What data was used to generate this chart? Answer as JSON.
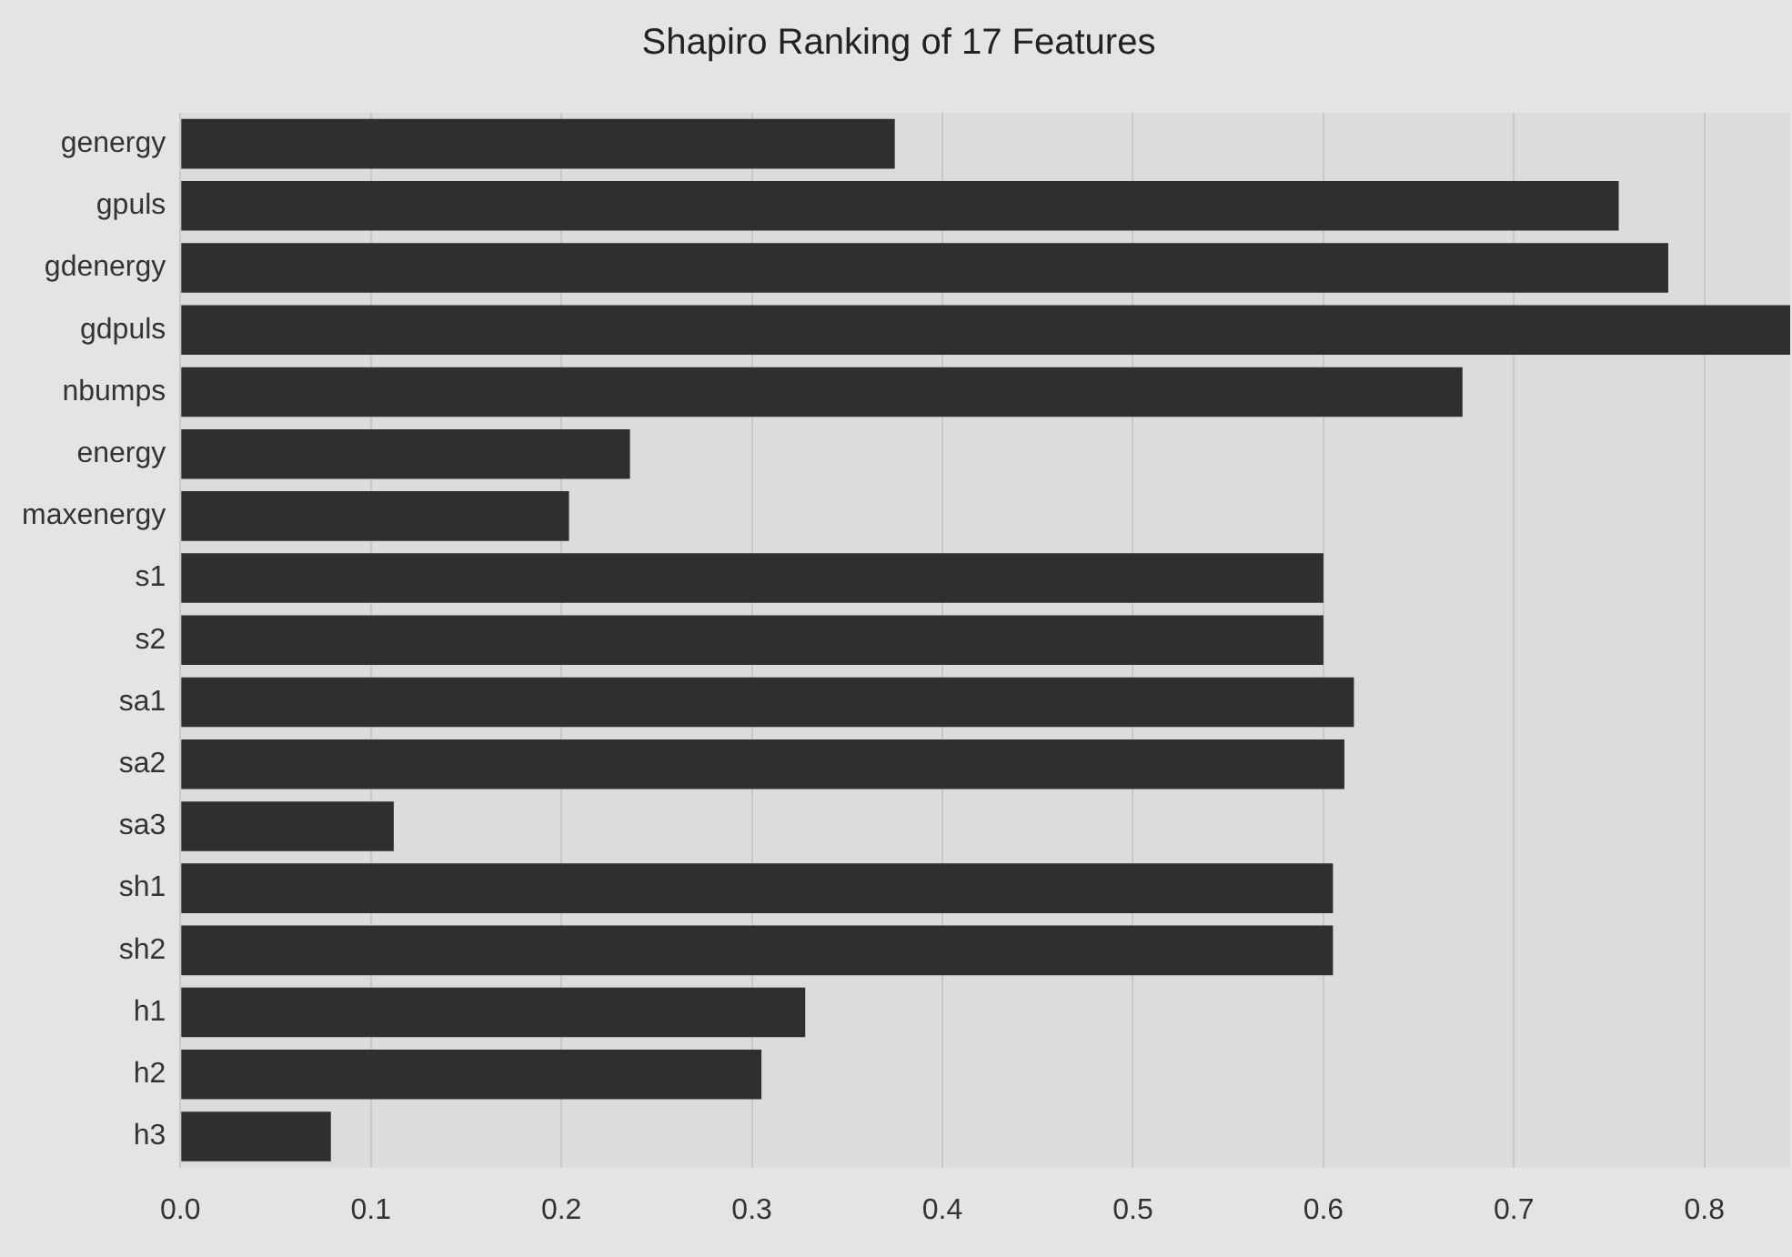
{
  "chart_data": {
    "type": "bar",
    "orientation": "horizontal",
    "title": "Shapiro Ranking of 17 Features",
    "categories": [
      "genergy",
      "gpuls",
      "gdenergy",
      "gdpuls",
      "nbumps",
      "energy",
      "maxenergy",
      "s1",
      "s2",
      "sa1",
      "sa2",
      "sa3",
      "sh1",
      "sh2",
      "h1",
      "h2",
      "h3"
    ],
    "values": [
      0.375,
      0.755,
      0.781,
      0.845,
      0.673,
      0.236,
      0.204,
      0.6,
      0.6,
      0.616,
      0.611,
      0.112,
      0.605,
      0.605,
      0.328,
      0.305,
      0.079
    ],
    "color": "#2f2f2f",
    "xlim": [
      0,
      0.845
    ],
    "xticks": [
      {
        "value": 0,
        "label": "0.0"
      },
      0.1,
      0.2,
      0.3,
      0.4,
      0.5,
      0.6,
      0.7,
      0.8
    ],
    "grid": "x",
    "legend": false
  }
}
